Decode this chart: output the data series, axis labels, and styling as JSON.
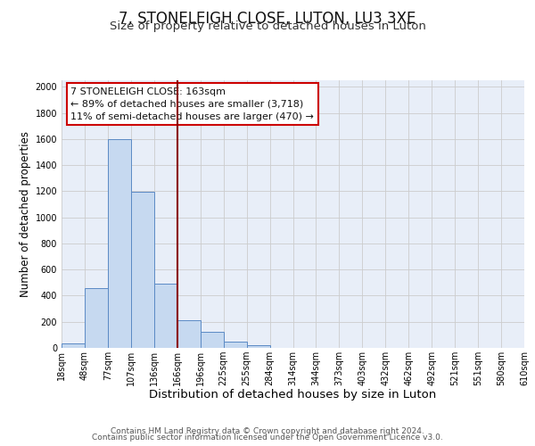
{
  "title": "7, STONELEIGH CLOSE, LUTON, LU3 3XE",
  "subtitle": "Size of property relative to detached houses in Luton",
  "xlabel": "Distribution of detached houses by size in Luton",
  "ylabel": "Number of detached properties",
  "bin_labels": [
    "18sqm",
    "48sqm",
    "77sqm",
    "107sqm",
    "136sqm",
    "166sqm",
    "196sqm",
    "225sqm",
    "255sqm",
    "284sqm",
    "314sqm",
    "344sqm",
    "373sqm",
    "403sqm",
    "432sqm",
    "462sqm",
    "492sqm",
    "521sqm",
    "551sqm",
    "580sqm",
    "610sqm"
  ],
  "bar_values": [
    35,
    455,
    1600,
    1195,
    490,
    215,
    120,
    45,
    20,
    0,
    0,
    0,
    0,
    0,
    0,
    0,
    0,
    0,
    0,
    0
  ],
  "bar_color": "#c6d9f0",
  "bar_edge_color": "#5b8ac5",
  "vline_x": 5,
  "vline_color": "#8b0000",
  "ann_line1": "7 STONELEIGH CLOSE: 163sqm",
  "ann_line2": "← 89% of detached houses are smaller (3,718)",
  "ann_line3": "11% of semi-detached houses are larger (470) →",
  "annotation_box_color": "#ffffff",
  "annotation_box_edge_color": "#cc0000",
  "ylim": [
    0,
    2050
  ],
  "yticks": [
    0,
    200,
    400,
    600,
    800,
    1000,
    1200,
    1400,
    1600,
    1800,
    2000
  ],
  "grid_color": "#cccccc",
  "bg_color": "#e8eef8",
  "footer_line1": "Contains HM Land Registry data © Crown copyright and database right 2024.",
  "footer_line2": "Contains public sector information licensed under the Open Government Licence v3.0.",
  "title_fontsize": 12,
  "subtitle_fontsize": 9.5,
  "xlabel_fontsize": 9.5,
  "ylabel_fontsize": 8.5,
  "tick_fontsize": 7,
  "annotation_fontsize": 8,
  "footer_fontsize": 6.5
}
